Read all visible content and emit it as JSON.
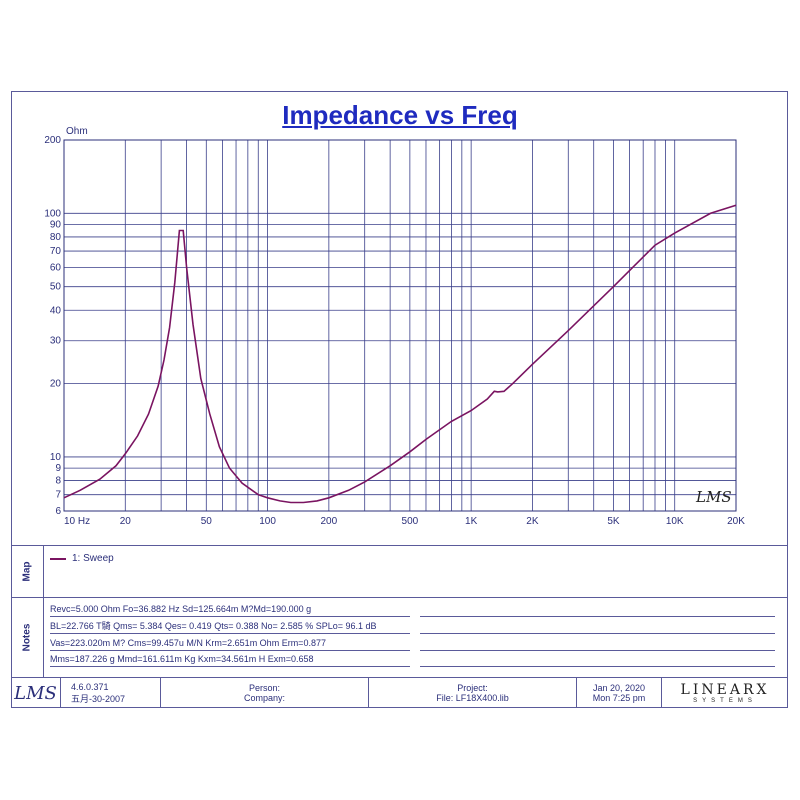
{
  "chart_data": {
    "type": "line",
    "title": "Impedance vs Freq",
    "ylabel": "Ohm",
    "x_scale": "log",
    "y_scale": "log",
    "xlim": [
      10,
      20000
    ],
    "ylim": [
      6,
      200
    ],
    "x_ticks": [
      10,
      20,
      30,
      40,
      50,
      60,
      70,
      80,
      90,
      100,
      200,
      300,
      400,
      500,
      600,
      700,
      800,
      900,
      1000,
      2000,
      3000,
      4000,
      5000,
      6000,
      7000,
      8000,
      9000,
      10000,
      20000
    ],
    "x_tick_labels": [
      {
        "value": 10,
        "label": "10  Hz"
      },
      {
        "value": 20,
        "label": "20"
      },
      {
        "value": 50,
        "label": "50"
      },
      {
        "value": 100,
        "label": "100"
      },
      {
        "value": 200,
        "label": "200"
      },
      {
        "value": 500,
        "label": "500"
      },
      {
        "value": 1000,
        "label": "1K"
      },
      {
        "value": 2000,
        "label": "2K"
      },
      {
        "value": 5000,
        "label": "5K"
      },
      {
        "value": 10000,
        "label": "10K"
      },
      {
        "value": 20000,
        "label": "20K"
      }
    ],
    "y_ticks": [
      6,
      7,
      8,
      9,
      10,
      20,
      30,
      40,
      50,
      60,
      70,
      80,
      90,
      100,
      200
    ],
    "y_tick_labels": [
      "6",
      "7",
      "8",
      "9",
      "10",
      "20",
      "30",
      "40",
      "50",
      "60",
      "70",
      "80",
      "90",
      "100",
      "200"
    ],
    "grid": true,
    "series": [
      {
        "name": "1: Sweep",
        "color": "#7a1461",
        "x": [
          10,
          12,
          15,
          18,
          20,
          23,
          26,
          29,
          31,
          33,
          35,
          36.9,
          38.5,
          40,
          43,
          47,
          52,
          58,
          65,
          75,
          90,
          100,
          115,
          130,
          150,
          175,
          200,
          250,
          300,
          400,
          500,
          600,
          800,
          1000,
          1200,
          1300,
          1350,
          1450,
          1600,
          2000,
          3000,
          5000,
          8000,
          10000,
          15000,
          20000
        ],
        "y": [
          6.8,
          7.3,
          8.1,
          9.2,
          10.3,
          12.2,
          15.0,
          19.5,
          25.0,
          34.0,
          52.0,
          85.0,
          85.0,
          60.0,
          35.0,
          21.0,
          15.0,
          11.0,
          9.0,
          7.8,
          7.0,
          6.8,
          6.6,
          6.5,
          6.5,
          6.6,
          6.8,
          7.3,
          7.9,
          9.2,
          10.5,
          11.8,
          14.0,
          15.5,
          17.3,
          18.6,
          18.5,
          18.6,
          20.0,
          24.0,
          33.0,
          50.0,
          74.0,
          83.0,
          100.0,
          108.0
        ]
      }
    ]
  },
  "legend": {
    "label": "1: Sweep",
    "section": "Map"
  },
  "notes": {
    "section": "Notes",
    "rows": [
      "Revc=5.000 Ohm  Fo=36.882 Hz  Sd=125.664m M?Md=190.000 g",
      "BL=22.766 T騎  Qms= 5.384  Qes= 0.419  Qts= 0.388  No= 2.585 %  SPLo= 96.1 dB",
      "Vas=223.020m M?  Cms=99.457u M/N  Krm=2.651m Ohm  Erm=0.877",
      "Mms=187.226 g  Mmd=161.611m Kg  Kxm=34.561m H  Exm=0.658"
    ]
  },
  "watermark": "LMS",
  "footer": {
    "logo": "LMS",
    "version": "4.6.0.371",
    "build_date": "五月-30-2007",
    "person_label": "Person:",
    "company_label": "Company:",
    "project_label": "Project:",
    "file_label": "File: LF18X400.lib",
    "date": "Jan 20, 2020",
    "time": "Mon  7:25 pm",
    "brand": "LINEARX",
    "brand_sub": "SYSTEMS"
  }
}
